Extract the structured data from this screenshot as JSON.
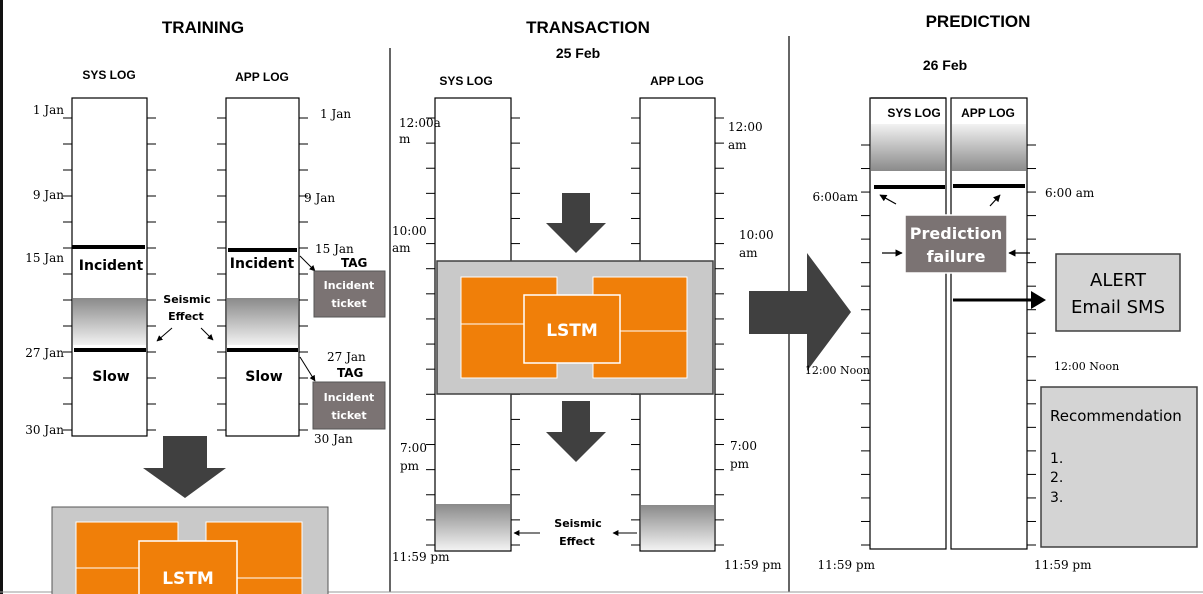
{
  "colors": {
    "orange": "#f07f09",
    "box_gray": "#c9c9c9",
    "dark_gray": "#7b7373",
    "arrow_gray": "#404040"
  },
  "training": {
    "title": "TRAINING",
    "sys_log": "SYS LOG",
    "app_log": "APP LOG",
    "sys_dates": [
      "1 Jan",
      "9 Jan",
      "15 Jan",
      "27 Jan",
      "30 Jan"
    ],
    "app_dates": [
      "1 Jan",
      "9 Jan",
      "15 Jan",
      "27 Jan",
      "30 Jan"
    ],
    "incident": "Incident",
    "slow": "Slow",
    "seismic": [
      "Seismic",
      "Effect"
    ],
    "tag": "TAG",
    "ticket": [
      "Incident",
      "ticket"
    ],
    "lstm": "LSTM"
  },
  "transaction": {
    "title": "TRANSACTION",
    "date": "25 Feb",
    "sys_log": "SYS LOG",
    "app_log": "APP LOG",
    "left_times": [
      [
        "12:00a",
        "m"
      ],
      [
        "10:00",
        "am"
      ],
      [
        "7:00",
        "pm"
      ],
      [
        "11:59 pm"
      ]
    ],
    "right_times": [
      [
        "12:00",
        "am"
      ],
      [
        "10:00",
        "am"
      ],
      [
        "7:00",
        "pm"
      ],
      [
        "11:59 pm"
      ]
    ],
    "lstm": "LSTM",
    "seismic": [
      "Seismic",
      "Effect"
    ]
  },
  "prediction": {
    "title": "PREDICTION",
    "date": "26 Feb",
    "sys_log": "SYS LOG",
    "app_log": "APP LOG",
    "left_times": [
      "6:00am",
      "12:00 Noon",
      "11:59 pm"
    ],
    "right_times": [
      "6:00 am",
      "12:00 Noon",
      "11:59 pm"
    ],
    "failure": [
      "Prediction",
      "failure"
    ],
    "alert": [
      "ALERT",
      "Email SMS"
    ],
    "recommendation": {
      "title": "Recommendation",
      "items": [
        "1.",
        "2.",
        "3."
      ]
    }
  }
}
